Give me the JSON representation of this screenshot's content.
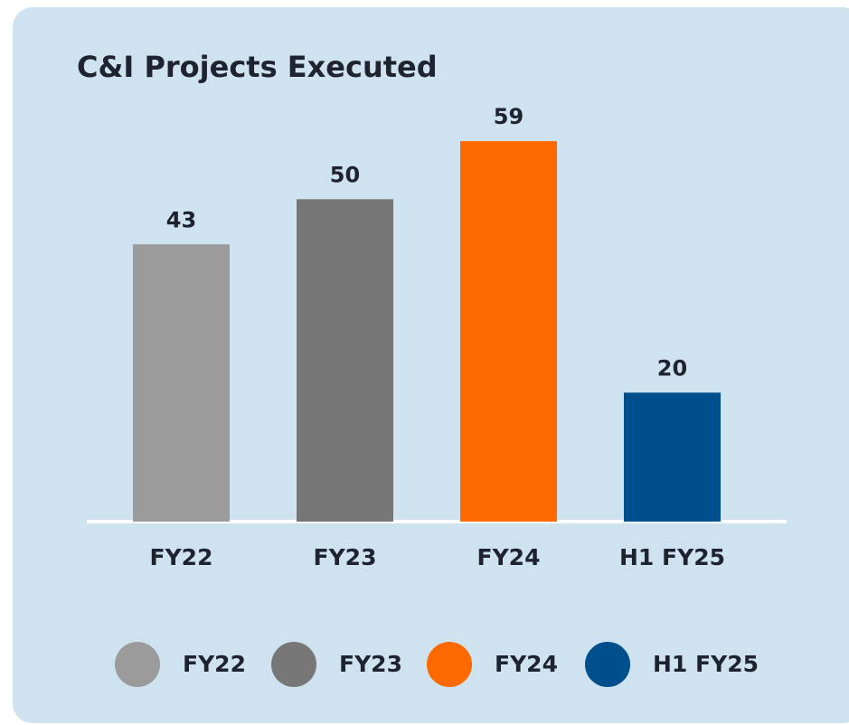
{
  "chart_data": {
    "type": "bar",
    "title": "C&I Projects Executed",
    "categories": [
      "FY22",
      "FY23",
      "FY24",
      "H1 FY25"
    ],
    "values": [
      43,
      50,
      59,
      20
    ],
    "colors": [
      "#9b9b9b",
      "#777777",
      "#ff6a00",
      "#004f8d"
    ],
    "ylim": [
      0,
      60
    ],
    "grid": false,
    "legend": "bottom"
  }
}
